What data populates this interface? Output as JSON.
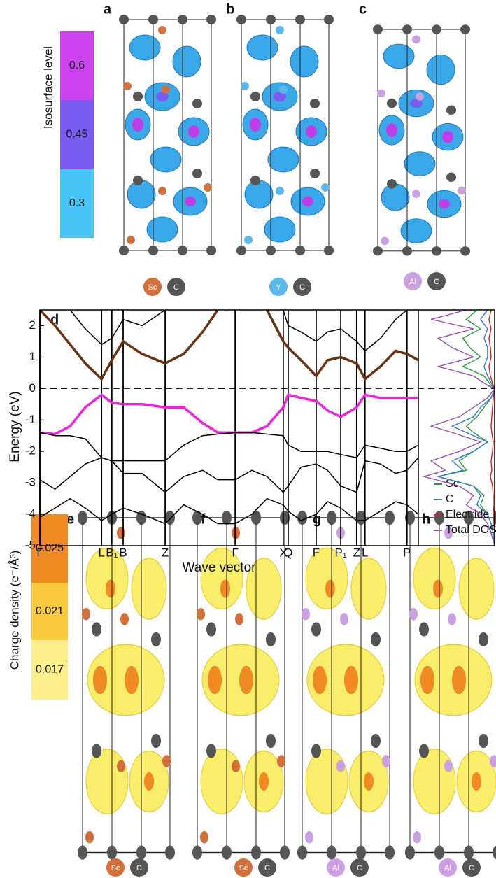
{
  "figure": {
    "panel_labels": [
      "a",
      "b",
      "c",
      "d",
      "e",
      "f",
      "g",
      "h"
    ],
    "isosurface_colorbar": {
      "title": "Isosurface level",
      "levels": [
        {
          "label": "0.6",
          "color": "#cc44ee"
        },
        {
          "label": "0.45",
          "color": "#7b5cf0"
        },
        {
          "label": "0.3",
          "color": "#45c6f6"
        }
      ]
    },
    "charge_colorbar": {
      "title": "Charge density (e⁻/Å³)",
      "levels": [
        {
          "label": "0.025",
          "color": "#f08a22"
        },
        {
          "label": "0.021",
          "color": "#fbc93c"
        },
        {
          "label": "0.017",
          "color": "#fdf08c"
        }
      ]
    },
    "atom_legends": [
      [
        {
          "label": "Sc",
          "color": "#d2703c"
        },
        {
          "label": "C",
          "color": "#555555"
        }
      ],
      [
        {
          "label": "Y",
          "color": "#5ab8ea"
        },
        {
          "label": "C",
          "color": "#555555"
        }
      ],
      [
        {
          "label": "Al",
          "color": "#c9a0e0"
        },
        {
          "label": "C",
          "color": "#555555"
        }
      ],
      [
        {
          "label": "Sc",
          "color": "#d2703c"
        },
        {
          "label": "C",
          "color": "#555555"
        }
      ],
      [
        {
          "label": "Sc",
          "color": "#d2703c"
        },
        {
          "label": "C",
          "color": "#555555"
        }
      ],
      [
        {
          "label": "Al",
          "color": "#c9a0e0"
        },
        {
          "label": "C",
          "color": "#555555"
        }
      ],
      [
        {
          "label": "Al",
          "color": "#c9a0e0"
        },
        {
          "label": "C",
          "color": "#555555"
        }
      ]
    ]
  },
  "chart_data": [
    {
      "type": "line",
      "x_label": "Wave vector",
      "y_label": "Energy (eV)",
      "xlim": [
        0,
        100
      ],
      "ylim": [
        -5,
        2.5
      ],
      "yticks": [
        -5,
        -4,
        -3,
        -2,
        -1,
        0,
        1,
        2
      ],
      "xticks": [
        {
          "value": 0,
          "label": "Γ"
        },
        {
          "value": 16.3,
          "label": "L"
        },
        {
          "value": 19,
          "label": "B₁"
        },
        {
          "value": 22,
          "label": "B"
        },
        {
          "value": 33.1,
          "label": "Z"
        },
        {
          "value": 51.6,
          "label": "Γ"
        },
        {
          "value": 64.3,
          "label": "X"
        },
        {
          "value": 65.6,
          "label": "Q"
        },
        {
          "value": 73,
          "label": "F"
        },
        {
          "value": 79.5,
          "label": "P₁"
        },
        {
          "value": 83.7,
          "label": "Z"
        },
        {
          "value": 85.9,
          "label": "L"
        },
        {
          "value": 97,
          "label": "P"
        }
      ],
      "reference_line": 0,
      "x": [
        0,
        4,
        8,
        12,
        16.3,
        19,
        22,
        27,
        33.1,
        38,
        43,
        47,
        51.6,
        56,
        60,
        64.3,
        65.6,
        69,
        73,
        76,
        79.5,
        83.7,
        85.9,
        90,
        94,
        97,
        100
      ],
      "series": [
        {
          "color": "#000000",
          "values": [
            null,
            null,
            2.5,
            1.9,
            1.4,
            1.6,
            2.2,
            2.0,
            2.5,
            null,
            null,
            null,
            null,
            null,
            null,
            2.5,
            2.0,
            1.8,
            1.5,
            1.8,
            1.9,
            1.5,
            1.2,
            1.6,
            2.2,
            2.5,
            null
          ]
        },
        {
          "color": "#6b3210",
          "values": [
            2.5,
            2.0,
            1.4,
            0.8,
            0.3,
            0.9,
            1.5,
            1.1,
            0.8,
            1.1,
            1.8,
            2.5,
            null,
            null,
            2.5,
            1.5,
            1.3,
            0.9,
            0.4,
            0.9,
            1.0,
            0.8,
            0.3,
            0.7,
            1.2,
            1.1,
            0.9
          ]
        },
        {
          "color": "#ee22dd",
          "values": [
            -1.4,
            -1.45,
            -1.2,
            -0.6,
            -0.2,
            -0.45,
            -0.5,
            -0.5,
            -0.6,
            -0.6,
            -1.1,
            -1.4,
            -1.4,
            -1.4,
            -1.2,
            -0.6,
            -0.2,
            -0.3,
            -0.4,
            -0.7,
            -0.9,
            -0.6,
            -0.2,
            -0.3,
            -0.3,
            -0.3,
            -0.3
          ]
        },
        {
          "color": "#000000",
          "values": [
            -1.4,
            -1.5,
            -1.5,
            -1.6,
            -2.2,
            -2.3,
            -2.3,
            -2.3,
            -2.3,
            -1.8,
            -1.5,
            -1.45,
            -1.4,
            -1.4,
            -1.45,
            -1.5,
            -1.8,
            -2.0,
            -2.0,
            -2.0,
            -2.1,
            -2.2,
            -1.8,
            -1.9,
            -2.0,
            -2.0,
            -1.8
          ]
        },
        {
          "color": "#000000",
          "values": [
            -2.9,
            -3.2,
            -2.8,
            -2.4,
            -2.2,
            -2.3,
            -2.7,
            -2.7,
            -3.3,
            -2.8,
            -2.6,
            -2.9,
            -2.9,
            -2.6,
            -2.8,
            -3.3,
            -3.1,
            -2.5,
            -2.4,
            -2.6,
            -3.1,
            -3.3,
            -2.3,
            -2.4,
            -2.7,
            -2.6,
            -2.2
          ]
        },
        {
          "color": "#000000",
          "values": [
            -4.1,
            -3.8,
            -3.5,
            -3.8,
            -4.2,
            -4.0,
            -3.8,
            -4.0,
            -4.3,
            -3.7,
            -4.0,
            -4.3,
            -4.3,
            -4.0,
            -3.5,
            -3.7,
            -3.9,
            -4.2,
            -4.0,
            -3.6,
            -3.8,
            -4.2,
            -4.2,
            -3.9,
            -3.6,
            -3.7,
            -4.0
          ]
        }
      ]
    },
    {
      "type": "dos",
      "legend": "lower right",
      "xlim": [
        -5,
        2.5
      ],
      "ylim": [
        0,
        1
      ],
      "x": [
        2.5,
        2.2,
        1.9,
        1.6,
        1.3,
        1.0,
        0.7,
        0.4,
        0.1,
        0,
        -0.3,
        -0.6,
        -0.9,
        -1.2,
        -1.4,
        -1.7,
        -2.0,
        -2.3,
        -2.6,
        -2.8,
        -3.1,
        -3.4,
        -3.7,
        -4.0,
        -4.3,
        -4.6,
        -5
      ],
      "series": [
        {
          "name": "Sc",
          "color": "#2a9d3a",
          "values": [
            0.25,
            0.4,
            0.2,
            0.45,
            0.35,
            0.2,
            0.45,
            0.15,
            0.05,
            0,
            0.05,
            0.15,
            0.25,
            0.4,
            0.3,
            0.1,
            0.3,
            0.5,
            0.4,
            0.8,
            0.3,
            0.15,
            0.2,
            0.1,
            0.05,
            0.02,
            0
          ]
        },
        {
          "name": "C",
          "color": "#2e7bd1",
          "values": [
            0.1,
            0.2,
            0.1,
            0.15,
            0.1,
            0.1,
            0.15,
            0.1,
            0.03,
            0,
            0.05,
            0.2,
            0.3,
            0.6,
            0.4,
            0.1,
            0.3,
            0.6,
            0.45,
            0.8,
            0.3,
            0.2,
            0.25,
            0.1,
            0.05,
            0.02,
            0
          ]
        },
        {
          "name": "Electride",
          "color": "#d42020",
          "values": [
            0.05,
            0.08,
            0.05,
            0.08,
            0.06,
            0.05,
            0.08,
            0.06,
            0.02,
            0,
            0.02,
            0.03,
            0.04,
            0.05,
            0.04,
            0.02,
            0.03,
            0.05,
            0.04,
            0.06,
            0.03,
            0.02,
            0.02,
            0.01,
            0.01,
            0,
            0
          ]
        },
        {
          "name": "Total DOS",
          "color": "#9b4fb0",
          "values": [
            0.4,
            0.9,
            0.3,
            0.8,
            0.6,
            0.3,
            0.8,
            0.3,
            0.1,
            0,
            0.1,
            0.3,
            0.5,
            0.9,
            0.6,
            0.2,
            0.5,
            0.9,
            0.7,
            1.0,
            0.5,
            0.3,
            0.4,
            0.2,
            0.1,
            0.05,
            0
          ]
        }
      ]
    }
  ]
}
